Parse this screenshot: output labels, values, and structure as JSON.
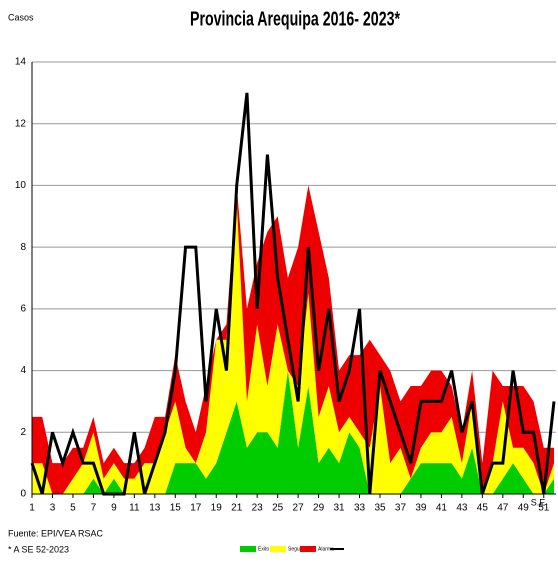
{
  "chart_data": {
    "type": "area",
    "stacked": true,
    "title": "Provincia Arequipa  2016- 2023*",
    "y_label": "Casos",
    "x_label": "S.E",
    "source": "Fuente: EPI/VEA RSAC",
    "note": "* A  SE  52-2023",
    "x": [
      1,
      2,
      3,
      4,
      5,
      6,
      7,
      8,
      9,
      10,
      11,
      12,
      13,
      14,
      15,
      16,
      17,
      18,
      19,
      20,
      21,
      22,
      23,
      24,
      25,
      26,
      27,
      28,
      29,
      30,
      31,
      32,
      33,
      34,
      35,
      36,
      37,
      38,
      39,
      40,
      41,
      42,
      43,
      44,
      45,
      46,
      47,
      48,
      49,
      50,
      51,
      52
    ],
    "xlim": [
      1,
      52
    ],
    "xticks": [
      1,
      3,
      5,
      7,
      9,
      11,
      13,
      15,
      17,
      19,
      21,
      23,
      25,
      27,
      29,
      31,
      33,
      35,
      37,
      39,
      41,
      43,
      45,
      47,
      49,
      51
    ],
    "ylim": [
      0,
      14
    ],
    "yticks": [
      0,
      2,
      4,
      6,
      8,
      10,
      12,
      14
    ],
    "grid": true,
    "series": [
      {
        "name": "Éxito",
        "color": "#00cc00",
        "values": [
          0,
          0,
          0,
          0,
          0,
          0,
          0.5,
          0,
          0.5,
          0,
          0,
          0,
          0,
          0,
          1,
          1,
          1,
          0.5,
          1,
          2,
          3,
          1.5,
          2,
          2,
          1.5,
          4,
          1.5,
          3.5,
          1,
          1.5,
          1,
          2,
          1.5,
          0,
          0,
          0,
          0,
          0.5,
          1,
          1,
          1,
          1,
          0.5,
          1.5,
          0,
          0,
          0.5,
          1,
          0.5,
          0,
          0,
          0.5
        ]
      },
      {
        "name": "Seguridad",
        "color": "#ffff00",
        "values": [
          1,
          1,
          0,
          0,
          0.5,
          1,
          1.5,
          0.5,
          0.5,
          0.5,
          0.5,
          1,
          1,
          2,
          2,
          0.5,
          0,
          1.5,
          4,
          3,
          6.5,
          1.5,
          3.5,
          1.5,
          4,
          0,
          2,
          3,
          1.5,
          2,
          1,
          0.5,
          0.5,
          1.5,
          3.5,
          1,
          1.5,
          0,
          0.5,
          1,
          1,
          1.5,
          0.5,
          1.5,
          0,
          1,
          2.5,
          0.5,
          1,
          1,
          0,
          0.5
        ]
      },
      {
        "name": "Alarma",
        "color": "#ee0000",
        "values": [
          1.5,
          1.5,
          1,
          1,
          1,
          0.5,
          0.5,
          0.5,
          0.5,
          0.5,
          0.5,
          0.5,
          1.5,
          0.5,
          1.5,
          1.5,
          1,
          1.5,
          0,
          0.5,
          0.5,
          3,
          2,
          5,
          3.5,
          3,
          4.5,
          3.5,
          6,
          3.5,
          2,
          2,
          2.5,
          3.5,
          1,
          3,
          1.5,
          3,
          2,
          2,
          2,
          1,
          1,
          1,
          1,
          3,
          0.5,
          2,
          2,
          2,
          1.5,
          0.5
        ]
      },
      {
        "type": "line",
        "color": "#000000",
        "values": [
          1,
          0,
          2,
          1,
          2,
          1,
          1,
          0,
          0,
          0,
          2,
          0,
          1,
          2,
          4,
          8,
          8,
          3,
          6,
          4,
          10,
          13,
          6,
          11,
          7,
          5,
          3,
          8,
          4,
          6,
          3,
          4,
          6,
          0,
          4,
          3,
          2,
          1,
          3,
          3,
          3,
          4,
          2,
          3,
          0,
          1,
          1,
          4,
          2,
          2,
          0,
          3
        ]
      }
    ]
  }
}
